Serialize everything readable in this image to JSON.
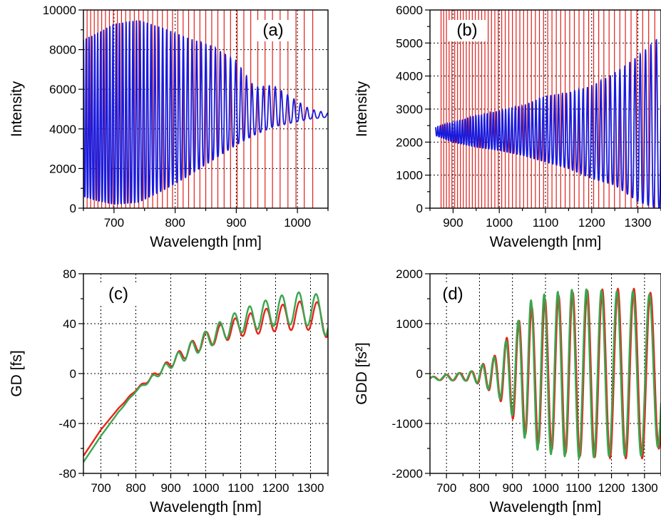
{
  "figure": {
    "colors": {
      "spectrum": "#1a1adc",
      "reference_lines": "#e0201c",
      "red_curve": "#e8241c",
      "green_curve": "#3aa64e",
      "grid": "#000000"
    }
  },
  "chart_data": [
    {
      "panel_label": "(a)",
      "type": "line",
      "xlabel": "Wavelength [nm]",
      "ylabel": "Intensity",
      "xlim": [
        650,
        1050
      ],
      "ylim": [
        0,
        10000
      ],
      "x_ticks": [
        700,
        800,
        900,
        1000
      ],
      "y_ticks": [
        0,
        2000,
        4000,
        6000,
        8000,
        10000
      ],
      "x_tick_labels": [
        "700",
        "800",
        "900",
        "1000"
      ],
      "y_tick_labels": [
        "0",
        "2000",
        "4000",
        "6000",
        "8000",
        "10000"
      ],
      "grid": true,
      "series": [
        {
          "style": "interference spectrum (fringes)",
          "color": "#1a1adc",
          "upper_envelope": {
            "x": [
              650,
              670,
              700,
              740,
              780,
              820,
              860,
              900,
              930,
              960,
              990,
              1020,
              1050
            ],
            "y": [
              8500,
              8800,
              9300,
              9500,
              9100,
              8600,
              8200,
              7400,
              6100,
              6200,
              5600,
              5000,
              4800
            ]
          },
          "lower_envelope": {
            "x": [
              650,
              670,
              700,
              740,
              780,
              820,
              860,
              900,
              930,
              960,
              990,
              1020,
              1050
            ],
            "y": [
              600,
              400,
              200,
              300,
              900,
              1600,
              2400,
              3200,
              3700,
              4100,
              4300,
              4500,
              4600
            ]
          },
          "fringe_centers": [
            650,
            1025
          ],
          "fringe_count_approx": 55
        }
      ],
      "vertical_markers": {
        "color": "#e0201c",
        "x_range": [
          656,
          1025
        ],
        "count_approx": 42
      }
    },
    {
      "panel_label": "(b)",
      "type": "line",
      "xlabel": "Wavelength [nm]",
      "ylabel": "Intensity",
      "xlim": [
        850,
        1350
      ],
      "ylim": [
        0,
        6000
      ],
      "x_ticks": [
        900,
        1000,
        1100,
        1200,
        1300
      ],
      "y_ticks": [
        0,
        1000,
        2000,
        3000,
        4000,
        5000,
        6000
      ],
      "x_tick_labels": [
        "900",
        "1000",
        "1100",
        "1200",
        "1300"
      ],
      "y_tick_labels": [
        "0",
        "1000",
        "2000",
        "3000",
        "4000",
        "5000",
        "6000"
      ],
      "grid": true,
      "series": [
        {
          "style": "interference spectrum (fringes)",
          "color": "#1a1adc",
          "upper_envelope": {
            "x": [
              862,
              900,
              950,
              1000,
              1050,
              1100,
              1150,
              1200,
              1250,
              1300,
              1340
            ],
            "y": [
              2450,
              2600,
              2800,
              2950,
              3100,
              3400,
              3500,
              3700,
              4100,
              4600,
              5100
            ]
          },
          "lower_envelope": {
            "x": [
              862,
              900,
              950,
              1000,
              1050,
              1100,
              1150,
              1200,
              1250,
              1300,
              1340
            ],
            "y": [
              2200,
              2000,
              1850,
              1750,
              1600,
              1400,
              1200,
              900,
              700,
              200,
              0
            ]
          },
          "fringe_count_approx": 62
        }
      ],
      "vertical_markers": {
        "color": "#e0201c",
        "x_range": [
          874,
          1350
        ],
        "count_approx": 55
      }
    },
    {
      "panel_label": "(c)",
      "type": "line",
      "xlabel": "Wavelength [nm]",
      "ylabel": "GD [fs]",
      "xlim": [
        650,
        1350
      ],
      "ylim": [
        -80,
        80
      ],
      "x_ticks": [
        700,
        800,
        900,
        1000,
        1100,
        1200,
        1300
      ],
      "y_ticks": [
        -80,
        -40,
        0,
        40,
        80
      ],
      "x_tick_labels": [
        "700",
        "800",
        "900",
        "1000",
        "1100",
        "1200",
        "1300"
      ],
      "y_tick_labels": [
        "-80",
        "-40",
        "0",
        "40",
        "80"
      ],
      "grid": true,
      "series": [
        {
          "color": "#e8241c",
          "trend": {
            "x": [
              650,
              700,
              750,
              800,
              850,
              900,
              950,
              1000,
              1050,
              1100,
              1150,
              1200,
              1250,
              1300,
              1345
            ],
            "y": [
              -66,
              -45,
              -28,
              -13,
              -2,
              9,
              19,
              27,
              33,
              38,
              41,
              44,
              46,
              47,
              42
            ]
          },
          "oscillation": {
            "start_x": 780,
            "period_nm_start": 33,
            "period_nm_end": 52,
            "amplitude_fs_end": 13
          }
        },
        {
          "color": "#3aa64e",
          "trend": {
            "x": [
              650,
              700,
              750,
              800,
              850,
              900,
              950,
              1000,
              1050,
              1100,
              1150,
              1200,
              1250,
              1300,
              1345
            ],
            "y": [
              -71,
              -50,
              -31,
              -14,
              -3,
              8,
              18,
              27,
              35,
              42,
              46,
              50,
              52,
              52,
              45
            ]
          },
          "oscillation": {
            "start_x": 780,
            "period_nm_start": 33,
            "period_nm_end": 52,
            "amplitude_fs_end": 15
          }
        }
      ]
    },
    {
      "panel_label": "(d)",
      "type": "line",
      "xlabel": "Wavelength [nm]",
      "ylabel": "GDD [fs²]",
      "xlim": [
        650,
        1350
      ],
      "ylim": [
        -2000,
        2000
      ],
      "x_ticks": [
        700,
        800,
        900,
        1000,
        1100,
        1200,
        1300
      ],
      "y_ticks": [
        -2000,
        -1000,
        0,
        1000,
        2000
      ],
      "x_tick_labels": [
        "700",
        "800",
        "900",
        "1000",
        "1100",
        "1200",
        "1300"
      ],
      "y_tick_labels": [
        "-2000",
        "-1000",
        "0",
        "1000",
        "2000"
      ],
      "grid": true,
      "series": [
        {
          "color": "#e8241c",
          "amplitude_envelope": {
            "x": [
              650,
              780,
              850,
              900,
              950,
              1000,
              1100,
              1200,
              1300,
              1345
            ],
            "y": [
              30,
              100,
              400,
              900,
              1300,
              1500,
              1650,
              1700,
              1700,
              1500
            ]
          }
        },
        {
          "color": "#3aa64e",
          "amplitude_envelope": {
            "x": [
              650,
              780,
              850,
              900,
              950,
              1000,
              1100,
              1200,
              1300,
              1345
            ],
            "y": [
              30,
              100,
              380,
              850,
              1450,
              1600,
              1700,
              1650,
              1650,
              1450
            ]
          }
        }
      ]
    }
  ]
}
